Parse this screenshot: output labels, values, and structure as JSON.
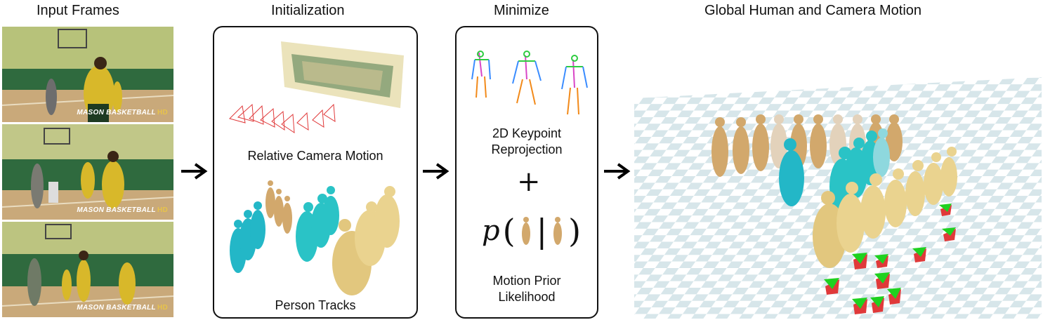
{
  "headers": {
    "input_frames": "Input Frames",
    "initialization": "Initialization",
    "minimize": "Minimize",
    "global": "Global Human and Camera Motion"
  },
  "frames": [
    {
      "watermark": "MASON BASKETBALL",
      "hd": "HD"
    },
    {
      "watermark": "MASON BASKETBALL",
      "hd": "HD"
    },
    {
      "watermark": "MASON BASKETBALL",
      "hd": "HD"
    }
  ],
  "initialization": {
    "camera_label": "Relative Camera Motion",
    "tracks_label": "Person Tracks"
  },
  "minimize": {
    "keypoint_label_line1": "2D Keypoint",
    "keypoint_label_line2": "Reprojection",
    "plus": "+",
    "prior_p": "p",
    "prior_open": "(",
    "prior_bar": "|",
    "prior_close": ")",
    "likelihood_line1": "Motion Prior",
    "likelihood_line2": "Likelihood"
  },
  "colors": {
    "person_cyan": "#23b7c7",
    "person_gold": "#e2c77e",
    "person_tan": "#d2a86c",
    "camera_red": "#e0393a",
    "camera_green": "#1fd11f",
    "court_green": "#2a5b35",
    "floor_check": "#d7e6ea"
  }
}
